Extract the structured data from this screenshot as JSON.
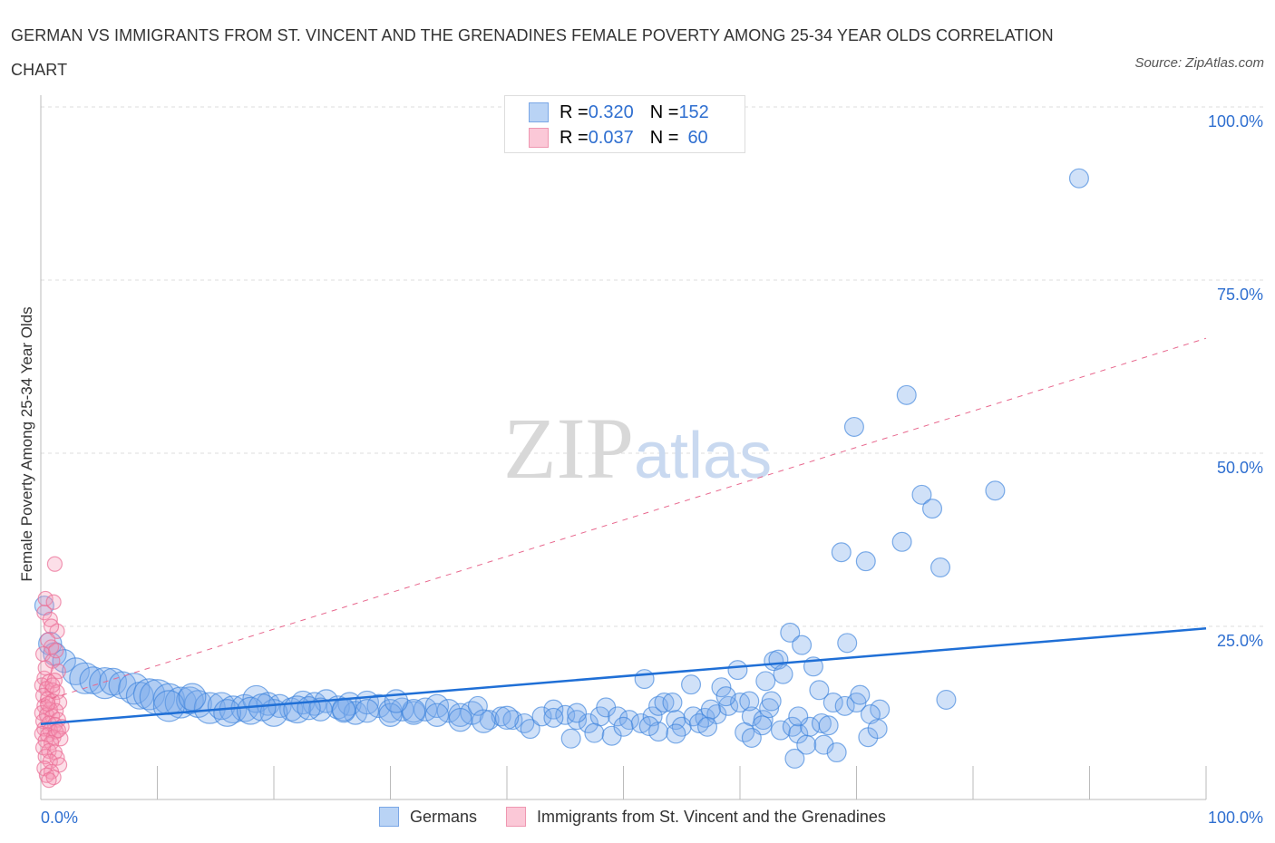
{
  "title": "GERMAN VS IMMIGRANTS FROM ST. VINCENT AND THE GRENADINES FEMALE POVERTY AMONG 25-34 YEAR OLDS CORRELATION CHART",
  "source": "Source: ZipAtlas.com",
  "watermark": "ZIPatlas",
  "legend": {
    "rows": [
      {
        "r_label": "R = ",
        "r": "0.320",
        "n_label": "N = ",
        "n": "152"
      },
      {
        "r_label": "R = ",
        "r": "0.037",
        "n_label": "N = ",
        "n": "60"
      }
    ]
  },
  "colors": {
    "blue": "#6a9fe0",
    "blue_line": "#1f6fd6",
    "pink": "#f07ca0",
    "pink_line": "#e8688e",
    "tick_text": "#2f6fd0"
  },
  "chart_data": {
    "type": "scatter",
    "title": "GERMAN VS IMMIGRANTS FROM ST. VINCENT AND THE GRENADINES FEMALE POVERTY AMONG 25-34 YEAR OLDS CORRELATION CHART",
    "xlabel": "",
    "ylabel": "Female Poverty Among 25-34 Year Olds",
    "xlim": [
      0,
      100
    ],
    "ylim": [
      0,
      100
    ],
    "x_tick_labels": [
      "0.0%",
      "100.0%"
    ],
    "y_ticks": [
      100,
      75,
      50,
      25
    ],
    "y_tick_labels": [
      "100.0%",
      "75.0%",
      "50.0%",
      "25.0%"
    ],
    "grid": true,
    "legend_placement": "bottom",
    "series": [
      {
        "name": "Germans",
        "trend": {
          "x0": 0,
          "y0": 10.9,
          "x1": 100,
          "y1": 24.7
        },
        "points": [
          [
            0.3,
            28,
            2
          ],
          [
            0.8,
            22.5,
            3
          ],
          [
            1.2,
            21,
            3
          ],
          [
            2,
            20,
            3
          ],
          [
            3,
            18.5,
            4
          ],
          [
            3.8,
            17.5,
            5
          ],
          [
            4.5,
            17.2,
            4
          ],
          [
            5.5,
            16.8,
            5
          ],
          [
            6.2,
            17,
            4
          ],
          [
            7,
            16.5,
            4
          ],
          [
            8,
            16,
            5
          ],
          [
            8.5,
            15,
            4
          ],
          [
            9.3,
            15.2,
            5
          ],
          [
            10,
            14.8,
            6
          ],
          [
            11,
            14.5,
            5
          ],
          [
            12,
            14,
            5
          ],
          [
            12.8,
            14.3,
            4
          ],
          [
            13.5,
            13.8,
            4
          ],
          [
            14.5,
            13.2,
            5
          ],
          [
            15.5,
            13.5,
            4
          ],
          [
            16.5,
            13,
            4
          ],
          [
            17.5,
            13.2,
            4
          ],
          [
            18.5,
            14.5,
            4
          ],
          [
            19.5,
            13.8,
            3
          ],
          [
            20.5,
            13.5,
            3
          ],
          [
            21.5,
            13,
            3
          ],
          [
            22.5,
            14,
            3
          ],
          [
            23.5,
            13.8,
            3
          ],
          [
            24.5,
            14.2,
            3
          ],
          [
            25.5,
            13.3,
            3
          ],
          [
            26.5,
            13.8,
            3
          ],
          [
            27,
            12.5,
            3
          ],
          [
            28,
            14,
            3
          ],
          [
            29,
            13.5,
            3
          ],
          [
            30,
            12.8,
            3
          ],
          [
            31,
            13,
            3
          ],
          [
            32,
            12.5,
            3
          ],
          [
            33,
            13,
            3
          ],
          [
            34,
            13.5,
            3
          ],
          [
            35,
            12.8,
            3
          ],
          [
            36,
            12.2,
            3
          ],
          [
            37,
            12.5,
            3
          ],
          [
            37.5,
            13.5,
            2
          ],
          [
            38.5,
            11.5,
            2
          ],
          [
            39.5,
            12,
            2
          ],
          [
            40.5,
            11.5,
            2
          ],
          [
            41.5,
            11,
            2
          ],
          [
            42,
            10.2,
            2
          ],
          [
            43,
            12,
            2
          ],
          [
            44,
            13,
            2
          ],
          [
            45,
            12.2,
            2
          ],
          [
            46,
            11.5,
            2
          ],
          [
            47,
            11,
            2
          ],
          [
            48,
            12,
            2
          ],
          [
            48.5,
            13.3,
            2
          ],
          [
            49.5,
            12,
            2
          ],
          [
            50.5,
            11.5,
            2
          ],
          [
            51.5,
            11,
            2
          ],
          [
            52.5,
            12,
            2
          ],
          [
            53,
            13.5,
            2
          ],
          [
            53.5,
            14,
            2
          ],
          [
            54.5,
            11.5,
            2
          ],
          [
            55,
            10.5,
            2
          ],
          [
            56,
            12,
            2
          ],
          [
            57,
            11.8,
            2
          ],
          [
            58,
            12.3,
            2
          ],
          [
            59,
            13.5,
            2
          ],
          [
            60,
            14,
            2
          ],
          [
            61,
            12,
            2
          ],
          [
            62,
            11.5,
            2
          ],
          [
            62.5,
            13.2,
            2
          ],
          [
            63.5,
            10,
            2
          ],
          [
            64.5,
            10.5,
            2
          ],
          [
            65,
            9.5,
            2
          ],
          [
            66,
            10.5,
            2
          ],
          [
            67,
            11,
            2
          ],
          [
            68,
            14,
            2
          ],
          [
            69,
            13.5,
            2
          ],
          [
            70,
            14,
            2
          ],
          [
            71,
            9,
            2
          ],
          [
            72,
            13,
            2
          ],
          [
            51.8,
            17.4,
            2
          ],
          [
            55.8,
            16.6,
            2
          ],
          [
            58.4,
            16.2,
            2
          ],
          [
            58.8,
            14.9,
            2
          ],
          [
            57.5,
            13,
            2
          ],
          [
            54.2,
            14,
            2
          ],
          [
            62.7,
            14.2,
            2
          ],
          [
            65,
            12,
            2
          ],
          [
            59.8,
            18.7,
            2
          ],
          [
            62.2,
            17.1,
            2
          ],
          [
            62.9,
            20,
            2
          ],
          [
            63.3,
            20.2,
            2
          ],
          [
            63.7,
            18.1,
            2
          ],
          [
            64.3,
            24.1,
            2
          ],
          [
            65.3,
            22.3,
            2
          ],
          [
            66.3,
            19.2,
            2
          ],
          [
            69.2,
            22.6,
            2
          ],
          [
            66.8,
            15.8,
            2
          ],
          [
            70.3,
            15.1,
            2
          ],
          [
            77.7,
            14.4,
            2
          ],
          [
            71.2,
            12.3,
            2
          ],
          [
            67.6,
            10.7,
            2
          ],
          [
            71.8,
            10.2,
            2
          ],
          [
            61.9,
            10.7,
            2
          ],
          [
            60.4,
            9.7,
            2
          ],
          [
            61,
            8.9,
            2
          ],
          [
            65.7,
            7.9,
            2
          ],
          [
            67.2,
            7.9,
            2
          ],
          [
            68.3,
            6.8,
            2
          ],
          [
            64.7,
            5.9,
            2
          ],
          [
            68.7,
            35.7,
            2
          ],
          [
            70.8,
            34.4,
            2
          ],
          [
            77.2,
            33.5,
            2
          ],
          [
            73.9,
            37.2,
            2
          ],
          [
            75.6,
            44,
            2
          ],
          [
            76.5,
            42,
            2
          ],
          [
            81.9,
            44.6,
            2
          ],
          [
            69.8,
            53.8,
            2
          ],
          [
            74.3,
            58.4,
            2
          ],
          [
            89.1,
            89.7,
            2
          ],
          [
            60.8,
            14.2,
            2
          ],
          [
            56.5,
            11,
            2
          ],
          [
            57.2,
            10.5,
            2
          ],
          [
            53,
            9.8,
            2
          ],
          [
            52.2,
            10.6,
            2
          ],
          [
            54.5,
            9.5,
            2
          ],
          [
            47.5,
            9.6,
            2
          ],
          [
            49,
            9.2,
            2
          ],
          [
            45.5,
            8.8,
            2
          ],
          [
            50,
            10.5,
            2
          ],
          [
            16,
            12.5,
            4
          ],
          [
            18,
            12.8,
            4
          ],
          [
            20,
            12.5,
            4
          ],
          [
            22,
            13,
            4
          ],
          [
            24,
            13,
            3
          ],
          [
            26,
            12.8,
            3
          ],
          [
            28,
            12.8,
            3
          ],
          [
            30,
            12.2,
            3
          ],
          [
            32,
            12.8,
            3
          ],
          [
            34,
            12.2,
            3
          ],
          [
            36,
            11.5,
            3
          ],
          [
            38,
            11.3,
            3
          ],
          [
            40,
            11.8,
            3
          ],
          [
            44,
            11.8,
            2
          ],
          [
            46,
            12.5,
            2
          ],
          [
            30.5,
            14.2,
            3
          ],
          [
            26,
            13,
            3
          ],
          [
            23,
            13.2,
            3
          ],
          [
            19,
            13.3,
            4
          ],
          [
            11,
            13.5,
            5
          ],
          [
            13,
            14.8,
            4
          ]
        ]
      },
      {
        "name": "Immigrants from St. Vincent and the Grenadines",
        "trend": {
          "x0": 0,
          "y0": 14.1,
          "x1": 100,
          "y1": 66.6
        },
        "points": [
          [
            1.2,
            34
          ],
          [
            0.4,
            29
          ],
          [
            1.1,
            28.5
          ],
          [
            0.3,
            27
          ],
          [
            0.8,
            26
          ],
          [
            1.4,
            24.3
          ],
          [
            0.6,
            23
          ],
          [
            0.9,
            22
          ],
          [
            0.2,
            21
          ],
          [
            1,
            20
          ],
          [
            1.5,
            18.5
          ],
          [
            0.3,
            17.5
          ],
          [
            0.7,
            17
          ],
          [
            1.2,
            17.2
          ],
          [
            0.1,
            16.5
          ],
          [
            0.5,
            16
          ],
          [
            1,
            15.8
          ],
          [
            1.4,
            15.5
          ],
          [
            0.2,
            15
          ],
          [
            0.6,
            14.5
          ],
          [
            1,
            14.2
          ],
          [
            1.6,
            14
          ],
          [
            0.3,
            13.5
          ],
          [
            0.8,
            13
          ],
          [
            1.3,
            12.8
          ],
          [
            0.1,
            12.5
          ],
          [
            0.5,
            12.2
          ],
          [
            1,
            12
          ],
          [
            1.5,
            11.5
          ],
          [
            0.2,
            11.3
          ],
          [
            0.7,
            11
          ],
          [
            1.2,
            10.8
          ],
          [
            1.8,
            10.5
          ],
          [
            0.3,
            10.2
          ],
          [
            0.8,
            10
          ],
          [
            1.3,
            9.8
          ],
          [
            0.1,
            9.5
          ],
          [
            0.6,
            9.3
          ],
          [
            1.1,
            9
          ],
          [
            1.7,
            8.8
          ],
          [
            0.4,
            8.5
          ],
          [
            0.9,
            8.2
          ],
          [
            0.2,
            7.5
          ],
          [
            0.7,
            7
          ],
          [
            1.2,
            6.8
          ],
          [
            0.4,
            6.2
          ],
          [
            1.4,
            6
          ],
          [
            0.8,
            5.5
          ],
          [
            1.6,
            5
          ],
          [
            0.3,
            4.5
          ],
          [
            0.9,
            4
          ],
          [
            0.5,
            3.5
          ],
          [
            1.1,
            3.2
          ],
          [
            0.7,
            2.8
          ],
          [
            1,
            16.5
          ],
          [
            0.4,
            19
          ],
          [
            1.3,
            21.5
          ],
          [
            0.9,
            25
          ],
          [
            1.5,
            10
          ],
          [
            0.6,
            13.8
          ]
        ]
      }
    ]
  },
  "bottom_legend": [
    "Germans",
    "Immigrants from St. Vincent and the Grenadines"
  ]
}
